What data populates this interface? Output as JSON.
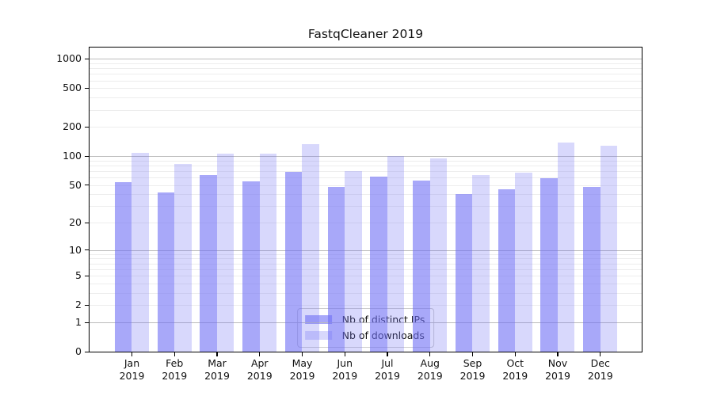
{
  "chart_data": {
    "type": "bar",
    "title": "FastqCleaner 2019",
    "months": [
      "Jan",
      "Feb",
      "Mar",
      "Apr",
      "May",
      "Jun",
      "Jul",
      "Aug",
      "Sep",
      "Oct",
      "Nov",
      "Dec"
    ],
    "year": "2019",
    "series": [
      {
        "name": "Nb of distinct IPs",
        "color": "rgba(110,110,245,0.60)",
        "values": [
          54,
          42,
          63,
          55,
          69,
          48,
          61,
          56,
          40,
          45,
          59,
          48
        ]
      },
      {
        "name": "Nb of downloads",
        "color": "rgba(110,110,245,0.27)",
        "values": [
          108,
          82,
          106,
          106,
          132,
          70,
          100,
          94,
          63,
          67,
          139,
          128
        ]
      }
    ],
    "y_ticks": [
      0,
      1,
      2,
      5,
      10,
      20,
      50,
      100,
      200,
      500,
      1000
    ],
    "y_scale": "log1p",
    "ylim": [
      0,
      1305
    ],
    "grid": "on",
    "grid_major_at": [
      1,
      10,
      100,
      1000
    ],
    "legend_position": "lower center",
    "text_color": "#111111"
  }
}
